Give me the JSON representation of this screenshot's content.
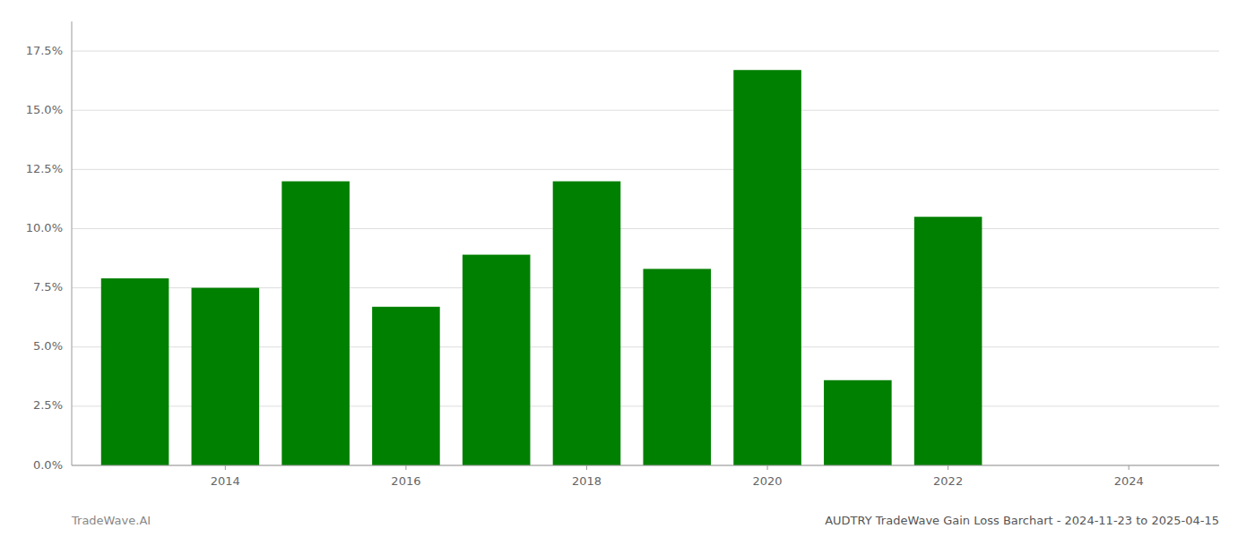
{
  "chart_data": {
    "type": "bar",
    "title": "AUDTRY TradeWave Gain Loss Barchart - 2024-11-23 to 2025-04-15",
    "annotations": [
      "TradeWave.AI"
    ],
    "x": [
      2013,
      2014,
      2015,
      2016,
      2017,
      2018,
      2019,
      2020,
      2021,
      2022
    ],
    "values": [
      0.079,
      0.075,
      0.12,
      0.067,
      0.089,
      0.12,
      0.083,
      0.167,
      0.036,
      0.105
    ],
    "color": "#008000",
    "xlim": [
      2012.3,
      2025.0
    ],
    "xticks": [
      2014,
      2016,
      2018,
      2020,
      2022,
      2024
    ],
    "ylim": [
      0,
      0.1875
    ],
    "yticks": [
      {
        "value": 0.0,
        "label": "0.0%"
      },
      {
        "value": 0.025,
        "label": "2.5%"
      },
      {
        "value": 0.05,
        "label": "5.0%"
      },
      {
        "value": 0.075,
        "label": "7.5%"
      },
      {
        "value": 0.1,
        "label": "10.0%"
      },
      {
        "value": 0.125,
        "label": "12.5%"
      },
      {
        "value": 0.15,
        "label": "15.0%"
      },
      {
        "value": 0.175,
        "label": "17.5%"
      }
    ],
    "grid": true
  }
}
